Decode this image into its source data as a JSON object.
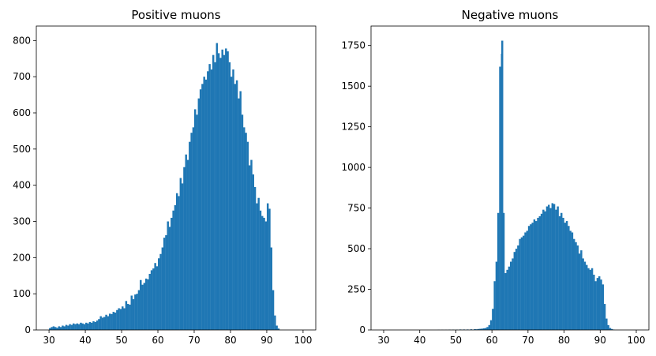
{
  "chart_data": [
    {
      "type": "bar",
      "title": "Positive muons",
      "xlabel": "",
      "ylabel": "",
      "xlim": [
        26.5,
        103.5
      ],
      "ylim": [
        0,
        840
      ],
      "xticks": [
        30,
        40,
        50,
        60,
        70,
        80,
        90,
        100
      ],
      "yticks": [
        0,
        100,
        200,
        300,
        400,
        500,
        600,
        700,
        800
      ],
      "bin_width": 0.5,
      "bar_color": "#1f77b4",
      "grid": false,
      "legend": "none",
      "bins": [
        [
          30,
          5
        ],
        [
          30.5,
          8
        ],
        [
          31,
          10
        ],
        [
          31.5,
          8
        ],
        [
          32,
          6
        ],
        [
          32.5,
          10
        ],
        [
          33,
          8
        ],
        [
          33.5,
          12
        ],
        [
          34,
          10
        ],
        [
          34.5,
          14
        ],
        [
          35,
          12
        ],
        [
          35.5,
          16
        ],
        [
          36,
          14
        ],
        [
          36.5,
          18
        ],
        [
          37,
          16
        ],
        [
          37.5,
          18
        ],
        [
          38,
          16
        ],
        [
          38.5,
          20
        ],
        [
          39,
          18
        ],
        [
          39.5,
          16
        ],
        [
          40,
          20
        ],
        [
          40.5,
          18
        ],
        [
          41,
          22
        ],
        [
          41.5,
          20
        ],
        [
          42,
          24
        ],
        [
          42.5,
          22
        ],
        [
          43,
          26
        ],
        [
          43.5,
          30
        ],
        [
          44,
          38
        ],
        [
          44.5,
          34
        ],
        [
          45,
          36
        ],
        [
          45.5,
          42
        ],
        [
          46,
          38
        ],
        [
          46.5,
          45
        ],
        [
          47,
          44
        ],
        [
          47.5,
          50
        ],
        [
          48,
          48
        ],
        [
          48.5,
          55
        ],
        [
          49,
          60
        ],
        [
          49.5,
          58
        ],
        [
          50,
          65
        ],
        [
          50.5,
          60
        ],
        [
          51,
          80
        ],
        [
          51.5,
          72
        ],
        [
          52,
          70
        ],
        [
          52.5,
          95
        ],
        [
          53,
          85
        ],
        [
          53.5,
          98
        ],
        [
          54,
          100
        ],
        [
          54.5,
          110
        ],
        [
          55,
          138
        ],
        [
          55.5,
          125
        ],
        [
          56,
          130
        ],
        [
          56.5,
          142
        ],
        [
          57,
          140
        ],
        [
          57.5,
          155
        ],
        [
          58,
          165
        ],
        [
          58.5,
          170
        ],
        [
          59,
          185
        ],
        [
          59.5,
          176
        ],
        [
          60,
          198
        ],
        [
          60.5,
          210
        ],
        [
          61,
          228
        ],
        [
          61.5,
          255
        ],
        [
          62,
          262
        ],
        [
          62.5,
          300
        ],
        [
          63,
          285
        ],
        [
          63.5,
          310
        ],
        [
          64,
          330
        ],
        [
          64.5,
          345
        ],
        [
          65,
          378
        ],
        [
          65.5,
          370
        ],
        [
          66,
          420
        ],
        [
          66.5,
          405
        ],
        [
          67,
          450
        ],
        [
          67.5,
          485
        ],
        [
          68,
          470
        ],
        [
          68.5,
          520
        ],
        [
          69,
          545
        ],
        [
          69.5,
          560
        ],
        [
          70,
          610
        ],
        [
          70.5,
          595
        ],
        [
          71,
          640
        ],
        [
          71.5,
          665
        ],
        [
          72,
          680
        ],
        [
          72.5,
          700
        ],
        [
          73,
          692
        ],
        [
          73.5,
          715
        ],
        [
          74,
          735
        ],
        [
          74.5,
          720
        ],
        [
          75,
          760
        ],
        [
          75.5,
          740
        ],
        [
          76,
          793
        ],
        [
          76.5,
          765
        ],
        [
          77,
          752
        ],
        [
          77.5,
          775
        ],
        [
          78,
          760
        ],
        [
          78.5,
          778
        ],
        [
          79,
          770
        ],
        [
          79.5,
          740
        ],
        [
          80,
          700
        ],
        [
          80.5,
          720
        ],
        [
          81,
          680
        ],
        [
          81.5,
          690
        ],
        [
          82,
          640
        ],
        [
          82.5,
          660
        ],
        [
          83,
          595
        ],
        [
          83.5,
          560
        ],
        [
          84,
          545
        ],
        [
          84.5,
          520
        ],
        [
          85,
          455
        ],
        [
          85.5,
          470
        ],
        [
          86,
          430
        ],
        [
          86.5,
          395
        ],
        [
          87,
          350
        ],
        [
          87.5,
          365
        ],
        [
          88,
          330
        ],
        [
          88.5,
          315
        ],
        [
          89,
          310
        ],
        [
          89.5,
          300
        ],
        [
          90,
          350
        ],
        [
          90.5,
          335
        ],
        [
          91,
          228
        ],
        [
          91.5,
          110
        ],
        [
          92,
          40
        ],
        [
          92.5,
          12
        ],
        [
          93,
          4
        ]
      ]
    },
    {
      "type": "bar",
      "title": "Negative muons",
      "xlabel": "",
      "ylabel": "",
      "xlim": [
        26.5,
        103.5
      ],
      "ylim": [
        0,
        1870
      ],
      "xticks": [
        30,
        40,
        50,
        60,
        70,
        80,
        90,
        100
      ],
      "yticks": [
        0,
        250,
        500,
        750,
        1000,
        1250,
        1500,
        1750
      ],
      "bin_width": 0.5,
      "bar_color": "#1f77b4",
      "grid": false,
      "legend": "none",
      "bins": [
        [
          45,
          1
        ],
        [
          46,
          1
        ],
        [
          47,
          1
        ],
        [
          48,
          2
        ],
        [
          49,
          2
        ],
        [
          50,
          2
        ],
        [
          51,
          3
        ],
        [
          52,
          3
        ],
        [
          53,
          3
        ],
        [
          54,
          4
        ],
        [
          55,
          5
        ],
        [
          55.5,
          4
        ],
        [
          56,
          6
        ],
        [
          56.5,
          7
        ],
        [
          57,
          8
        ],
        [
          57.5,
          10
        ],
        [
          58,
          12
        ],
        [
          58.5,
          18
        ],
        [
          59,
          30
        ],
        [
          59.5,
          60
        ],
        [
          60,
          130
        ],
        [
          60.5,
          300
        ],
        [
          61,
          420
        ],
        [
          61.5,
          720
        ],
        [
          62,
          1620
        ],
        [
          62.5,
          1700
        ],
        [
          62.6,
          1780
        ],
        [
          63,
          720
        ],
        [
          63.5,
          350
        ],
        [
          64,
          370
        ],
        [
          64.5,
          390
        ],
        [
          65,
          420
        ],
        [
          65.5,
          440
        ],
        [
          66,
          480
        ],
        [
          66.5,
          500
        ],
        [
          67,
          520
        ],
        [
          67.5,
          560
        ],
        [
          68,
          570
        ],
        [
          68.5,
          580
        ],
        [
          69,
          600
        ],
        [
          69.5,
          610
        ],
        [
          70,
          640
        ],
        [
          70.5,
          650
        ],
        [
          71,
          660
        ],
        [
          71.5,
          680
        ],
        [
          72,
          670
        ],
        [
          72.5,
          690
        ],
        [
          73,
          700
        ],
        [
          73.5,
          715
        ],
        [
          74,
          740
        ],
        [
          74.5,
          730
        ],
        [
          75,
          760
        ],
        [
          75.5,
          770
        ],
        [
          76,
          750
        ],
        [
          76.5,
          780
        ],
        [
          77,
          775
        ],
        [
          77.5,
          740
        ],
        [
          78,
          760
        ],
        [
          78.5,
          700
        ],
        [
          79,
          720
        ],
        [
          79.5,
          690
        ],
        [
          80,
          660
        ],
        [
          80.5,
          670
        ],
        [
          81,
          640
        ],
        [
          81.5,
          610
        ],
        [
          82,
          600
        ],
        [
          82.5,
          560
        ],
        [
          83,
          540
        ],
        [
          83.5,
          520
        ],
        [
          84,
          470
        ],
        [
          84.5,
          490
        ],
        [
          85,
          440
        ],
        [
          85.5,
          420
        ],
        [
          86,
          400
        ],
        [
          86.5,
          380
        ],
        [
          87,
          370
        ],
        [
          87.5,
          380
        ],
        [
          88,
          340
        ],
        [
          88.5,
          300
        ],
        [
          89,
          320
        ],
        [
          89.5,
          330
        ],
        [
          90,
          310
        ],
        [
          90.5,
          280
        ],
        [
          91,
          160
        ],
        [
          91.5,
          70
        ],
        [
          92,
          30
        ],
        [
          92.5,
          12
        ],
        [
          93,
          6
        ],
        [
          93.5,
          2
        ]
      ]
    }
  ]
}
